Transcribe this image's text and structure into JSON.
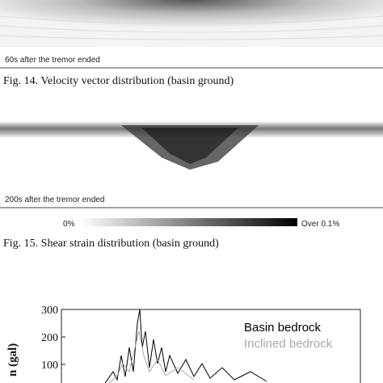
{
  "figure14": {
    "label": "60s after the tremor ended",
    "caption": "Fig. 14. Velocity vector distribution (basin ground)"
  },
  "figure15": {
    "label": "200s after the tremor ended",
    "colorbar_min": "0%",
    "colorbar_max": "Over 0.1%",
    "caption": "Fig. 15. Shear strain distribution (basin ground)"
  },
  "chart_data": {
    "type": "line",
    "y_label": "n (gal)",
    "ylim": [
      0,
      300
    ],
    "yticks": [
      100,
      200,
      300
    ],
    "legend": [
      {
        "name": "Basin bedrock",
        "color": "#000000"
      },
      {
        "name": "Inclined bedrock",
        "color": "#aaaaaa"
      }
    ]
  }
}
